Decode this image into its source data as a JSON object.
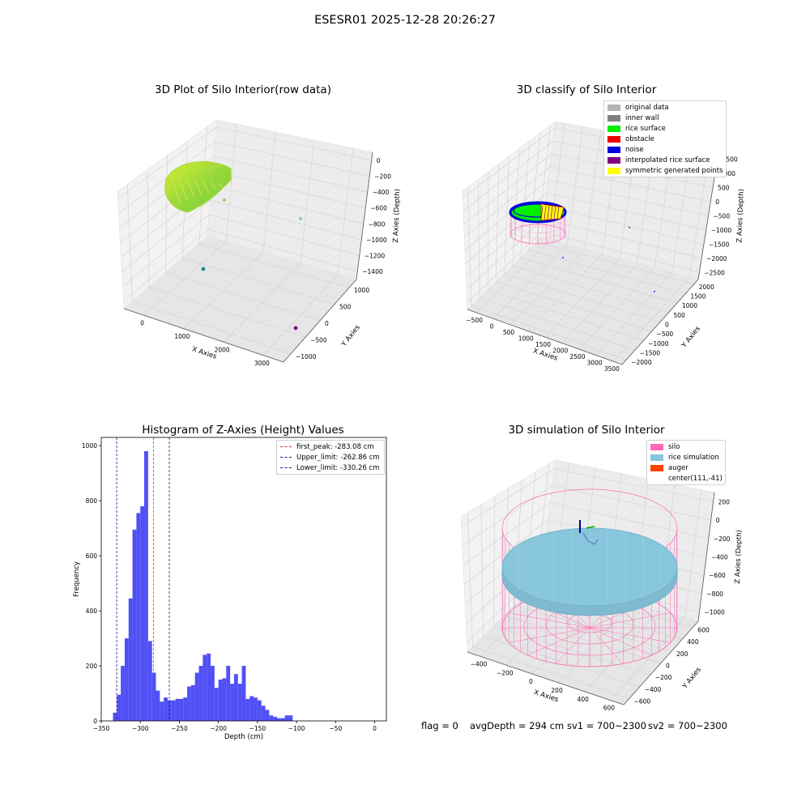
{
  "figure": {
    "suptitle": "ESESR01 2025-12-28 20:26:27",
    "footer": {
      "flag": "flag = 0",
      "avg_depth": "avgDepth = 294 cm",
      "sv1": "sv1 = 700~2300",
      "sv2": "sv2 = 700~2300"
    }
  },
  "colors": {
    "hist_bar": "#5050f5",
    "first_peak": "#e0302a",
    "upper_limit": "#1a1a8c",
    "lower_limit": "#1a1a8c",
    "silo": "#ff69b4",
    "rice": "#87c6dd",
    "auger": "#ff4500"
  },
  "chart_data": [
    {
      "type": "scatter",
      "plot3d": true,
      "title": "3D Plot of Silo Interior(row data)",
      "xlabel": "X Axies",
      "ylabel": "Y Axies",
      "zlabel": "Z Axies (Depth)",
      "x_ticks": [
        "0",
        "1000",
        "2000",
        "3000"
      ],
      "y_ticks": [
        "1000",
        "500",
        "0",
        "−500",
        "−1000"
      ],
      "z_ticks": [
        "0",
        "−200",
        "−400",
        "−600",
        "−800",
        "−1000",
        "−1200",
        "−1400"
      ],
      "outliers": [
        {
          "x": 1500,
          "y": 700,
          "z": -500
        },
        {
          "x": 200,
          "y": -200,
          "z": -1300
        },
        {
          "x": 3000,
          "y": -700,
          "z": -1400
        }
      ]
    },
    {
      "type": "scatter",
      "plot3d": true,
      "title": "3D classify of Silo Interior",
      "xlabel": "X Axies",
      "ylabel": "Y Axies",
      "zlabel": "Z Axies (Depth)",
      "x_ticks": [
        "−500",
        "0",
        "500",
        "1000",
        "1500",
        "2000",
        "2500",
        "3000",
        "3500"
      ],
      "y_ticks": [
        "2000",
        "1500",
        "1000",
        "500",
        "0",
        "−500",
        "−1000",
        "−1500",
        "−2000"
      ],
      "z_ticks": [
        "1500",
        "1000",
        "500",
        "0",
        "−500",
        "−1000",
        "−1500",
        "−2000",
        "−2500"
      ],
      "legend": [
        {
          "label": "original data",
          "color": "#b4b4b4"
        },
        {
          "label": "inner wall",
          "color": "#808080"
        },
        {
          "label": "rice surface",
          "color": "#00ee00"
        },
        {
          "label": "obstacle",
          "color": "#ee0000"
        },
        {
          "label": "noise",
          "color": "#0000dd"
        },
        {
          "label": "interpolated rice surface",
          "color": "#800080"
        },
        {
          "label": "symmetric generated points",
          "color": "#ffff00"
        }
      ],
      "legend_position": "upper-right"
    },
    {
      "type": "bar",
      "title": "Histogram of Z-Axies (Height) Values",
      "xlabel": "Depth (cm)",
      "ylabel": "Frequency",
      "xlim": [
        -350,
        15
      ],
      "ylim": [
        0,
        1030
      ],
      "x_ticks": [
        -350,
        -300,
        -250,
        -200,
        -150,
        -100,
        -50,
        0
      ],
      "x_tick_labels": [
        "−350",
        "−300",
        "−250",
        "−200",
        "−150",
        "−100",
        "−50",
        "0"
      ],
      "y_ticks": [
        0,
        200,
        400,
        600,
        800,
        1000
      ],
      "bin_start": -335,
      "bin_width": 5,
      "values": [
        30,
        95,
        200,
        300,
        445,
        695,
        755,
        780,
        980,
        290,
        175,
        110,
        70,
        85,
        75,
        75,
        80,
        80,
        85,
        125,
        130,
        175,
        200,
        240,
        245,
        200,
        120,
        150,
        155,
        200,
        135,
        170,
        135,
        200,
        80,
        90,
        85,
        75,
        55,
        40,
        20,
        15,
        10,
        10,
        20,
        20
      ],
      "vlines": [
        {
          "x": -283.08,
          "label": "first_peak: -283.08 cm",
          "color_key": "first_peak"
        },
        {
          "x": -262.86,
          "label": "Upper_limit: -262.86 cm",
          "color_key": "upper_limit"
        },
        {
          "x": -330.26,
          "label": "Lower_limit: -330.26 cm",
          "color_key": "lower_limit"
        }
      ],
      "legend_position": "upper-right"
    },
    {
      "type": "scatter",
      "plot3d": true,
      "title": "3D simulation of Silo Interior",
      "xlabel": "X Axies",
      "ylabel": "Y Axies",
      "zlabel": "Z Axies (Depth)",
      "x_ticks": [
        "−400",
        "−200",
        "0",
        "200",
        "400",
        "600"
      ],
      "y_ticks": [
        "600",
        "400",
        "200",
        "0",
        "−200",
        "−400",
        "−600"
      ],
      "z_ticks": [
        "200",
        "0",
        "−200",
        "−400",
        "−600",
        "−800",
        "−1000"
      ],
      "legend": [
        {
          "label": "silo",
          "color": "#ff69b4"
        },
        {
          "label": "rice simulation",
          "color": "#87c6dd"
        },
        {
          "label": "auger",
          "color": "#ff4500"
        },
        {
          "label": "center(111,-41)",
          "color": "transparent"
        }
      ],
      "legend_position": "upper-right"
    }
  ]
}
